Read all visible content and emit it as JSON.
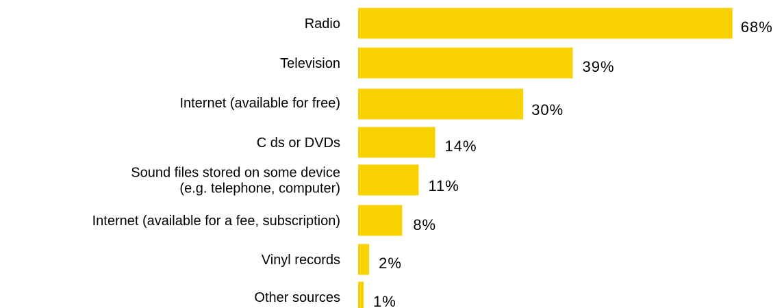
{
  "chart_data": {
    "type": "bar",
    "orientation": "horizontal",
    "categories": [
      [
        "Radio"
      ],
      [
        "Television"
      ],
      [
        "Internet (available for free)"
      ],
      [
        "C ds or DVDs"
      ],
      [
        "Sound files stored on some device",
        "(e.g. telephone, computer)"
      ],
      [
        "Internet (available for a fee, subscription)"
      ],
      [
        "Vinyl records"
      ],
      [
        "Other sources"
      ]
    ],
    "values": [
      68,
      39,
      30,
      14,
      11,
      8,
      2,
      1
    ],
    "value_labels": [
      "68%",
      "39%",
      "30%",
      "14%",
      "11%",
      "8%",
      "2%",
      "1%"
    ],
    "unit": "%",
    "xlim": [
      0,
      68
    ],
    "grid": false,
    "legend": "none",
    "bar_color": "#F8D100"
  }
}
